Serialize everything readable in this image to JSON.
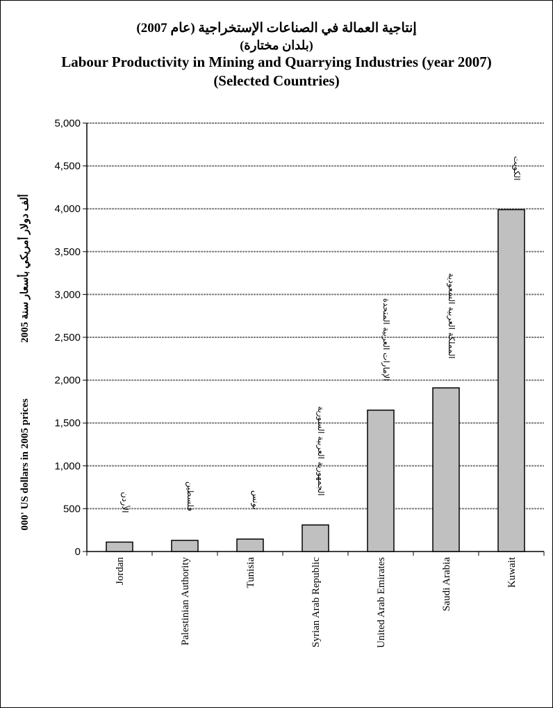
{
  "chart_data": {
    "type": "bar",
    "title_ar": "إنتاجية العمالة في الصناعات الإستخراجية (عام 2007)",
    "subtitle_ar": "(بلدان مختارة)",
    "title": "Labour Productivity in Mining and Quarrying Industries (year 2007)",
    "subtitle": "(Selected Countries)",
    "ylabel_ar": "ألف دولار أمريكي بأسعار سنة 2005",
    "ylabel": "000' US dollars in 2005 prices",
    "categories": [
      "Jordan",
      "Palestinian Authority",
      "Tunisia",
      "Syrian Arab Republic",
      "United Arab Emirates",
      "Saudi Arabia",
      "Kuwait"
    ],
    "categories_ar": [
      "الأردن",
      "فلسطين",
      "تونس",
      "الجمهورية العربية السورية",
      "الإمارات العربية المتحدة",
      "المملكة العربية السعودية",
      "الكويت"
    ],
    "values": [
      110,
      130,
      145,
      310,
      1650,
      1910,
      3990
    ],
    "ylim": [
      0,
      5000
    ],
    "yticks": [
      0,
      500,
      1000,
      1500,
      2000,
      2500,
      3000,
      3500,
      4000,
      4500,
      5000
    ],
    "ytick_labels": [
      "0",
      "500",
      "1,000",
      "1,500",
      "2,000",
      "2,500",
      "3,000",
      "3,500",
      "4,000",
      "4,500",
      "5,000"
    ],
    "grid": true,
    "colors": {
      "bar": "#c0c0c0",
      "bar_edge": "#000000",
      "grid": "#808080"
    }
  }
}
